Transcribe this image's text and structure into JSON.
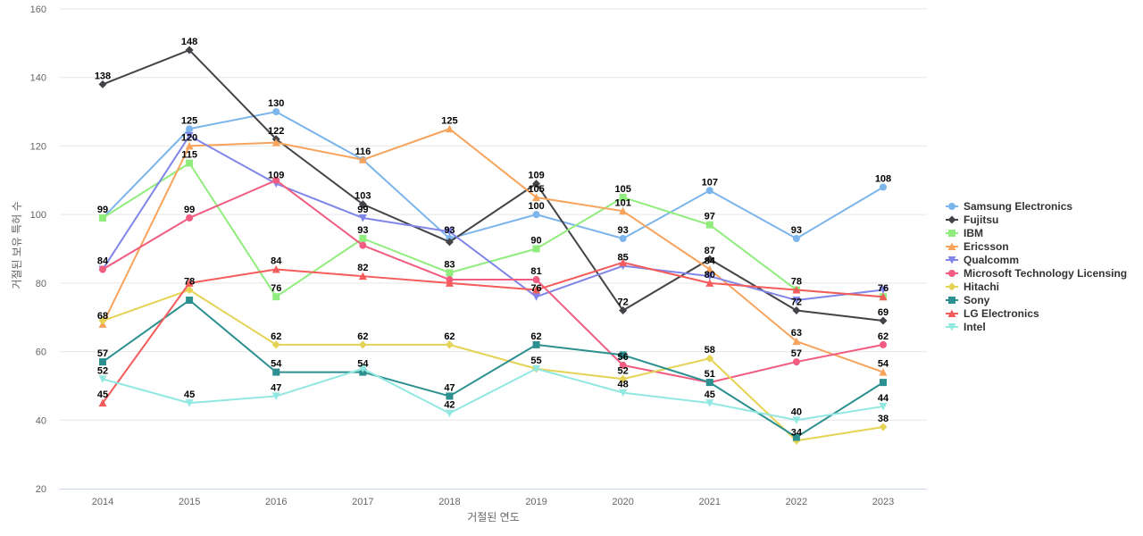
{
  "chart_data": {
    "type": "line",
    "title": "",
    "xlabel": "거절된 연도",
    "ylabel": "거절된 보유 특허 수",
    "x": [
      "2014",
      "2015",
      "2016",
      "2017",
      "2018",
      "2019",
      "2020",
      "2021",
      "2022",
      "2023"
    ],
    "ylim": [
      20,
      160
    ],
    "yticks": [
      20,
      40,
      60,
      80,
      100,
      120,
      140,
      160
    ],
    "grid": true,
    "legend_position": "right",
    "series": [
      {
        "name": "Samsung Electronics",
        "color": "#7cb5ec",
        "marker": "circle",
        "values": [
          99,
          125,
          130,
          116,
          93,
          100,
          93,
          107,
          93,
          108
        ]
      },
      {
        "name": "Fujitsu",
        "color": "#434348",
        "marker": "diamond",
        "values": [
          138,
          148,
          122,
          103,
          92,
          109,
          72,
          87,
          72,
          69
        ]
      },
      {
        "name": "IBM",
        "color": "#90ed7d",
        "marker": "square",
        "values": [
          99,
          115,
          76,
          93,
          83,
          90,
          105,
          97,
          78,
          76
        ]
      },
      {
        "name": "Ericsson",
        "color": "#f7a35c",
        "marker": "triangle",
        "values": [
          68,
          120,
          121,
          116,
          125,
          105,
          101,
          84,
          63,
          54
        ]
      },
      {
        "name": "Qualcomm",
        "color": "#8085e9",
        "marker": "triangle-down",
        "values": [
          84,
          123,
          109,
          99,
          95,
          76,
          85,
          82,
          75,
          78
        ]
      },
      {
        "name": "Microsoft Technology Licensing",
        "color": "#f15c80",
        "marker": "circle",
        "values": [
          84,
          99,
          110,
          91,
          81,
          81,
          56,
          51,
          57,
          62
        ]
      },
      {
        "name": "Hitachi",
        "color": "#e4d354",
        "marker": "diamond",
        "values": [
          69,
          78,
          62,
          62,
          62,
          55,
          52,
          58,
          34,
          38
        ]
      },
      {
        "name": "Sony",
        "color": "#2b908f",
        "marker": "square",
        "values": [
          57,
          75,
          54,
          54,
          47,
          62,
          59,
          51,
          35,
          51
        ]
      },
      {
        "name": "LG Electronics",
        "color": "#f45b5b",
        "marker": "triangle",
        "values": [
          45,
          80,
          84,
          82,
          80,
          78,
          86,
          80,
          78,
          76
        ]
      },
      {
        "name": "Intel",
        "color": "#91e8e1",
        "marker": "triangle-down",
        "values": [
          52,
          45,
          47,
          55,
          42,
          55,
          48,
          45,
          40,
          44
        ]
      }
    ],
    "data_labels": [
      {
        "x": "2014",
        "y": 138,
        "text": "138"
      },
      {
        "x": "2015",
        "y": 148,
        "text": "148"
      },
      {
        "x": "2016",
        "y": 130,
        "text": "130"
      },
      {
        "x": "2015",
        "y": 125,
        "text": "125"
      },
      {
        "x": "2018",
        "y": 125,
        "text": "125"
      },
      {
        "x": "2016",
        "y": 122,
        "text": "122"
      },
      {
        "x": "2015",
        "y": 120,
        "text": "120"
      },
      {
        "x": "2017",
        "y": 116,
        "text": "116"
      },
      {
        "x": "2015",
        "y": 115,
        "text": "115"
      },
      {
        "x": "2016",
        "y": 109,
        "text": "109"
      },
      {
        "x": "2019",
        "y": 109,
        "text": "109"
      },
      {
        "x": "2021",
        "y": 107,
        "text": "107"
      },
      {
        "x": "2023",
        "y": 108,
        "text": "108"
      },
      {
        "x": "2019",
        "y": 105,
        "text": "105"
      },
      {
        "x": "2020",
        "y": 105,
        "text": "105"
      },
      {
        "x": "2017",
        "y": 103,
        "text": "103"
      },
      {
        "x": "2020",
        "y": 101,
        "text": "101"
      },
      {
        "x": "2019",
        "y": 100,
        "text": "100"
      },
      {
        "x": "2014",
        "y": 99,
        "text": "99"
      },
      {
        "x": "2015",
        "y": 99,
        "text": "99"
      },
      {
        "x": "2017",
        "y": 99,
        "text": "99"
      },
      {
        "x": "2021",
        "y": 97,
        "text": "97"
      },
      {
        "x": "2017",
        "y": 93,
        "text": "93"
      },
      {
        "x": "2018",
        "y": 93,
        "text": "93"
      },
      {
        "x": "2020",
        "y": 93,
        "text": "93"
      },
      {
        "x": "2022",
        "y": 93,
        "text": "93"
      },
      {
        "x": "2019",
        "y": 90,
        "text": "90"
      },
      {
        "x": "2021",
        "y": 87,
        "text": "87"
      },
      {
        "x": "2020",
        "y": 85,
        "text": "85"
      },
      {
        "x": "2014",
        "y": 84,
        "text": "84"
      },
      {
        "x": "2016",
        "y": 84,
        "text": "84"
      },
      {
        "x": "2021",
        "y": 84,
        "text": "84"
      },
      {
        "x": "2018",
        "y": 83,
        "text": "83"
      },
      {
        "x": "2017",
        "y": 82,
        "text": "82"
      },
      {
        "x": "2019",
        "y": 81,
        "text": "81"
      },
      {
        "x": "2021",
        "y": 80,
        "text": "80"
      },
      {
        "x": "2015",
        "y": 78,
        "text": "78"
      },
      {
        "x": "2022",
        "y": 78,
        "text": "78"
      },
      {
        "x": "2016",
        "y": 76,
        "text": "76"
      },
      {
        "x": "2019",
        "y": 76,
        "text": "76"
      },
      {
        "x": "2023",
        "y": 76,
        "text": "76"
      },
      {
        "x": "2020",
        "y": 72,
        "text": "72"
      },
      {
        "x": "2022",
        "y": 72,
        "text": "72"
      },
      {
        "x": "2023",
        "y": 69,
        "text": "69"
      },
      {
        "x": "2014",
        "y": 68,
        "text": "68"
      },
      {
        "x": "2022",
        "y": 63,
        "text": "63"
      },
      {
        "x": "2016",
        "y": 62,
        "text": "62"
      },
      {
        "x": "2017",
        "y": 62,
        "text": "62"
      },
      {
        "x": "2018",
        "y": 62,
        "text": "62"
      },
      {
        "x": "2019",
        "y": 62,
        "text": "62"
      },
      {
        "x": "2023",
        "y": 62,
        "text": "62"
      },
      {
        "x": "2021",
        "y": 58,
        "text": "58"
      },
      {
        "x": "2014",
        "y": 57,
        "text": "57"
      },
      {
        "x": "2022",
        "y": 57,
        "text": "57"
      },
      {
        "x": "2020",
        "y": 56,
        "text": "56"
      },
      {
        "x": "2019",
        "y": 55,
        "text": "55"
      },
      {
        "x": "2016",
        "y": 54,
        "text": "54"
      },
      {
        "x": "2017",
        "y": 54,
        "text": "54"
      },
      {
        "x": "2023",
        "y": 54,
        "text": "54"
      },
      {
        "x": "2014",
        "y": 52,
        "text": "52"
      },
      {
        "x": "2020",
        "y": 52,
        "text": "52"
      },
      {
        "x": "2021",
        "y": 51,
        "text": "51"
      },
      {
        "x": "2020",
        "y": 48,
        "text": "48"
      },
      {
        "x": "2016",
        "y": 47,
        "text": "47"
      },
      {
        "x": "2018",
        "y": 47,
        "text": "47"
      },
      {
        "x": "2014",
        "y": 45,
        "text": "45"
      },
      {
        "x": "2015",
        "y": 45,
        "text": "45"
      },
      {
        "x": "2021",
        "y": 45,
        "text": "45"
      },
      {
        "x": "2023",
        "y": 44,
        "text": "44"
      },
      {
        "x": "2018",
        "y": 42,
        "text": "42"
      },
      {
        "x": "2022",
        "y": 40,
        "text": "40"
      },
      {
        "x": "2023",
        "y": 38,
        "text": "38"
      },
      {
        "x": "2022",
        "y": 34,
        "text": "34"
      }
    ]
  }
}
